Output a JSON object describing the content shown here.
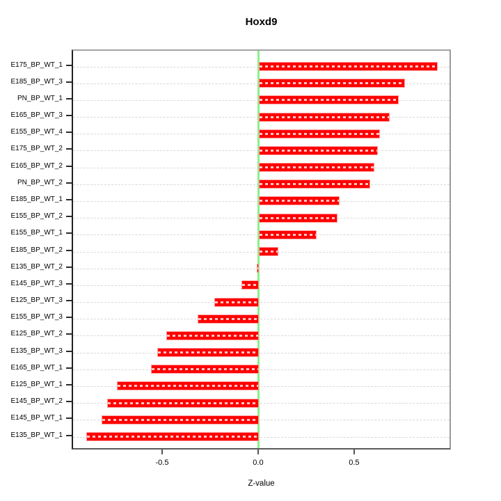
{
  "title": "Hoxd9",
  "chart_data": {
    "type": "bar",
    "orientation": "horizontal",
    "title": "Hoxd9",
    "xlabel": "Z-value",
    "ylabel": "",
    "categories": [
      "E175_BP_WT_1",
      "E185_BP_WT_3",
      "PN_BP_WT_1",
      "E165_BP_WT_3",
      "E155_BP_WT_4",
      "E175_BP_WT_2",
      "E165_BP_WT_2",
      "PN_BP_WT_2",
      "E185_BP_WT_1",
      "E155_BP_WT_2",
      "E155_BP_WT_1",
      "E185_BP_WT_2",
      "E135_BP_WT_2",
      "E145_BP_WT_3",
      "E125_BP_WT_3",
      "E155_BP_WT_3",
      "E125_BP_WT_2",
      "E135_BP_WT_3",
      "E165_BP_WT_1",
      "E125_BP_WT_1",
      "E145_BP_WT_2",
      "E145_BP_WT_1",
      "E135_BP_WT_1"
    ],
    "values": [
      0.93,
      0.76,
      0.73,
      0.68,
      0.63,
      0.62,
      0.6,
      0.58,
      0.42,
      0.41,
      0.3,
      0.1,
      -0.01,
      -0.09,
      -0.23,
      -0.32,
      -0.48,
      -0.53,
      -0.56,
      -0.74,
      -0.79,
      -0.82,
      -0.9
    ],
    "xlim": [
      -0.971,
      1.004
    ],
    "x_ticks": [
      -0.5,
      0.0,
      0.5
    ],
    "x_tick_labels": [
      "-0.5",
      "0.0",
      "0.5"
    ],
    "grid": true,
    "grid_style": "dashed-horizontal-per-category",
    "legend": false,
    "colors": {
      "bar_fill": "#ff0000",
      "bar_border": "#ff9a9a",
      "bar_dash_overlay": "#ffffff",
      "zero_line": "#8af08a",
      "gridline": "#d8d8d8",
      "box_border": "#9a9a9a",
      "axis_text": "#000000"
    }
  }
}
